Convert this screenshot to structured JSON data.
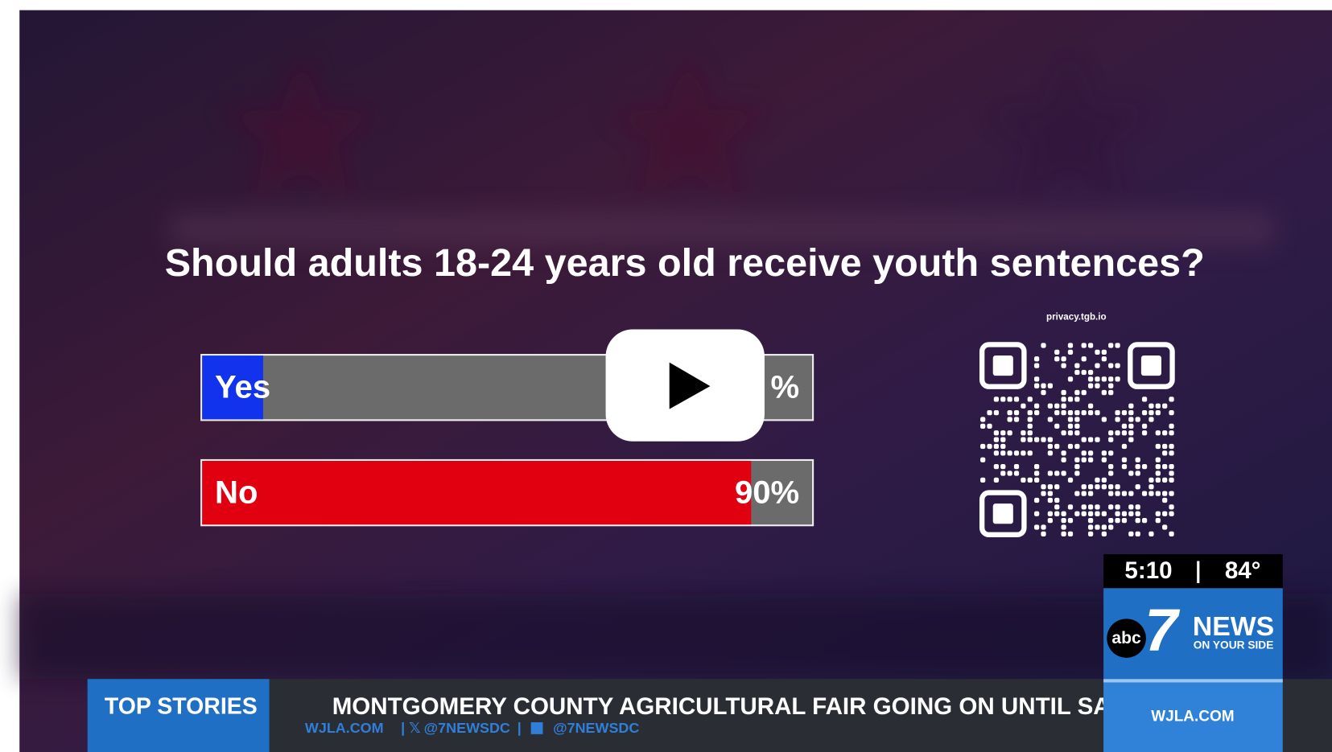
{
  "poll": {
    "question": "Should adults 18-24 years old receive youth sentences?",
    "options": [
      {
        "label": "Yes",
        "value": 10,
        "value_label": "%",
        "color": "#1133ee"
      },
      {
        "label": "No",
        "value": 90,
        "value_label": "90%",
        "color": "#e00010"
      }
    ],
    "qr_caption": "privacy.tgb.io"
  },
  "bug": {
    "time": "5:10",
    "temperature": "84°",
    "network": "abc",
    "channel": "7",
    "brand": "NEWS",
    "tagline": "ON YOUR SIDE",
    "site": "WJLA.COM"
  },
  "ticker": {
    "label": "TOP STORIES",
    "headline": "MONTGOMERY COUNTY AGRICULTURAL FAIR GOING ON UNTIL SA",
    "links": [
      "WJLA.COM",
      "@7NEWSDC",
      "@7NEWSDC"
    ]
  }
}
